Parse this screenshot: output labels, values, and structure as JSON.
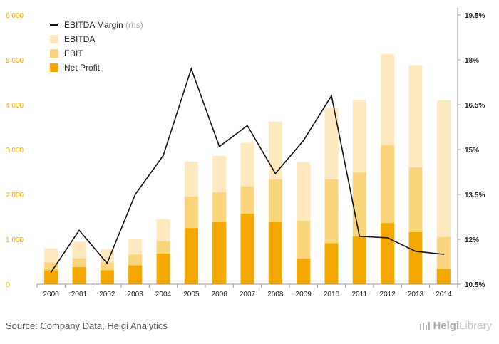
{
  "chart_data": {
    "type": "bar+line",
    "categories": [
      "2000",
      "2001",
      "2002",
      "2003",
      "2004",
      "2005",
      "2006",
      "2007",
      "2008",
      "2009",
      "2010",
      "2011",
      "2012",
      "2013",
      "2014"
    ],
    "series": [
      {
        "name": "EBITDA",
        "kind": "bar",
        "axis": "left",
        "color": "#fde9bd",
        "values": [
          800,
          950,
          780,
          1000,
          1450,
          2730,
          2860,
          3150,
          3620,
          2720,
          3920,
          4110,
          5130,
          4880,
          4100
        ]
      },
      {
        "name": "EBIT",
        "kind": "bar",
        "axis": "left",
        "color": "#fbd57c",
        "values": [
          480,
          580,
          480,
          660,
          960,
          1950,
          2050,
          2180,
          2330,
          1410,
          2330,
          2490,
          3100,
          2600,
          1050
        ]
      },
      {
        "name": "Net Profit",
        "kind": "bar",
        "axis": "left",
        "color": "#f5a800",
        "values": [
          310,
          380,
          310,
          420,
          680,
          1250,
          1380,
          1570,
          1380,
          570,
          910,
          1060,
          1360,
          1160,
          340
        ]
      },
      {
        "name": "EBITDA Margin",
        "kind": "line",
        "axis": "right",
        "color": "#111111",
        "values": [
          10.9,
          12.3,
          11.2,
          13.5,
          14.8,
          17.7,
          15.1,
          15.8,
          14.2,
          15.3,
          16.8,
          12.1,
          12.05,
          11.6,
          11.5
        ]
      }
    ],
    "left_axis": {
      "min": 0,
      "max": 6000,
      "ticks": [
        0,
        1000,
        2000,
        3000,
        4000,
        5000,
        6000
      ],
      "tick_labels": [
        "0",
        "1 000",
        "2 000",
        "3 000",
        "4 000",
        "5 000",
        "6 000"
      ],
      "color": "#f5a800"
    },
    "right_axis": {
      "min": 10.5,
      "max": 19.5,
      "ticks": [
        10.5,
        12,
        13.5,
        15,
        16.5,
        18,
        19.5
      ],
      "tick_labels": [
        "10.5%",
        "12%",
        "13.5%",
        "15%",
        "16.5%",
        "18%",
        "19.5%"
      ]
    },
    "legend": [
      {
        "label": "EBITDA Margin",
        "note": "(rhs)",
        "marker": "line",
        "color": "#111111"
      },
      {
        "label": "EBITDA",
        "marker": "box",
        "color": "#fde9bd"
      },
      {
        "label": "EBIT",
        "marker": "box",
        "color": "#fbd57c"
      },
      {
        "label": "Net Profit",
        "marker": "box",
        "color": "#f5a800"
      }
    ],
    "legend_position": "top-left",
    "grid": false
  },
  "footer": {
    "source": "Source: Company Data, Helgi Analytics",
    "logo_part1": "Helgi",
    "logo_part2": "Library"
  }
}
